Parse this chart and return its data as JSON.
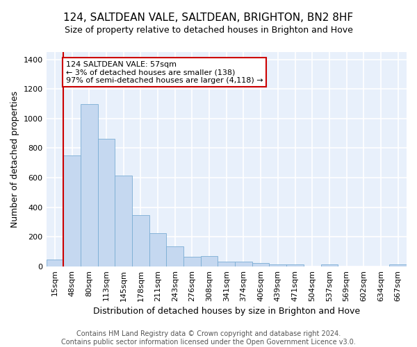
{
  "title": "124, SALTDEAN VALE, SALTDEAN, BRIGHTON, BN2 8HF",
  "subtitle": "Size of property relative to detached houses in Brighton and Hove",
  "xlabel": "Distribution of detached houses by size in Brighton and Hove",
  "ylabel": "Number of detached properties",
  "footer_line1": "Contains HM Land Registry data © Crown copyright and database right 2024.",
  "footer_line2": "Contains public sector information licensed under the Open Government Licence v3.0.",
  "categories": [
    "15sqm",
    "48sqm",
    "80sqm",
    "113sqm",
    "145sqm",
    "178sqm",
    "211sqm",
    "243sqm",
    "276sqm",
    "308sqm",
    "341sqm",
    "374sqm",
    "406sqm",
    "439sqm",
    "471sqm",
    "504sqm",
    "537sqm",
    "569sqm",
    "602sqm",
    "634sqm",
    "667sqm"
  ],
  "values": [
    48,
    750,
    1100,
    865,
    615,
    345,
    225,
    135,
    65,
    70,
    30,
    30,
    22,
    15,
    15,
    0,
    12,
    0,
    0,
    0,
    12
  ],
  "bar_color": "#c5d8f0",
  "bar_edge_color": "#7aadd4",
  "background_color": "#e8f0fb",
  "grid_color": "#ffffff",
  "annotation_text": "124 SALTDEAN VALE: 57sqm\n← 3% of detached houses are smaller (138)\n97% of semi-detached houses are larger (4,118) →",
  "annotation_box_color": "#ffffff",
  "annotation_box_edge_color": "#cc0000",
  "vline_color": "#cc0000",
  "vline_xindex": 1,
  "ylim": [
    0,
    1450
  ],
  "yticks": [
    0,
    200,
    400,
    600,
    800,
    1000,
    1200,
    1400
  ],
  "title_fontsize": 11,
  "subtitle_fontsize": 9,
  "ylabel_fontsize": 9,
  "xlabel_fontsize": 9,
  "tick_fontsize": 8,
  "annot_fontsize": 8,
  "footer_fontsize": 7
}
